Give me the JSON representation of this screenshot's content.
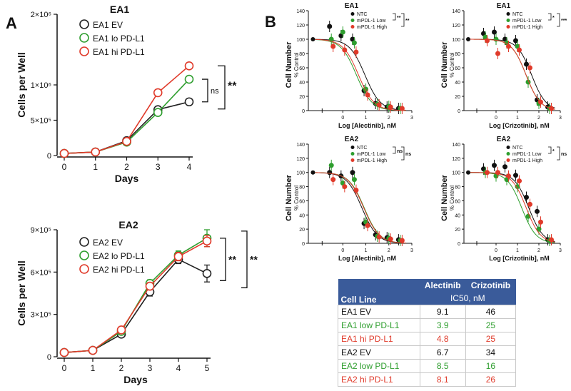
{
  "panel_labels": {
    "a": "A",
    "b": "B"
  },
  "colors": {
    "ev": "#222222",
    "lo": "#2e9e2e",
    "hi": "#e03a2a",
    "ntc": "#111111",
    "mlow": "#2e9e2e",
    "mhigh": "#e03a2a",
    "table_header": "#3a5b9a"
  },
  "chart_data": [
    {
      "type": "line",
      "title": "EA1",
      "xlabel": "Days",
      "ylabel": "Cells per Well",
      "x": [
        0,
        1,
        2,
        3,
        4
      ],
      "xlim": [
        0,
        4
      ],
      "ylim": [
        0,
        2000000
      ],
      "yticks": [
        "0",
        "5×10⁵",
        "1×10⁶",
        "2×10⁶"
      ],
      "xticks": [
        "0",
        "1",
        "2",
        "3",
        "4"
      ],
      "series": [
        {
          "name": "EA1 EV",
          "values": [
            30000,
            50000,
            210000,
            650000,
            760000
          ]
        },
        {
          "name": "EA1 lo PD-L1",
          "values": [
            30000,
            50000,
            190000,
            610000,
            1080000
          ]
        },
        {
          "name": "EA1 hi PD-L1",
          "values": [
            30000,
            50000,
            200000,
            890000,
            1270000
          ]
        }
      ],
      "annotations": [
        "ns",
        "**"
      ],
      "legend": "top-left"
    },
    {
      "type": "line",
      "title": "EA2",
      "xlabel": "Days",
      "ylabel": "Cells per Well",
      "x": [
        0,
        1,
        2,
        3,
        4,
        5
      ],
      "xlim": [
        0,
        5
      ],
      "ylim": [
        0,
        900000
      ],
      "yticks": [
        "0",
        "3×10⁵",
        "6×10⁵",
        "9×10⁵"
      ],
      "xticks": [
        "0",
        "1",
        "2",
        "3",
        "4",
        "5"
      ],
      "series": [
        {
          "name": "EA2 EV",
          "values": [
            30000,
            45000,
            160000,
            460000,
            690000,
            590000
          ],
          "err": [
            0,
            0,
            10000,
            30000,
            30000,
            60000
          ]
        },
        {
          "name": "EA2 lo PD-L1",
          "values": [
            30000,
            45000,
            180000,
            520000,
            720000,
            840000
          ],
          "err": [
            0,
            0,
            10000,
            25000,
            30000,
            60000
          ]
        },
        {
          "name": "EA2 hi PD-L1",
          "values": [
            30000,
            45000,
            190000,
            500000,
            710000,
            820000
          ],
          "err": [
            0,
            0,
            10000,
            25000,
            30000,
            40000
          ]
        }
      ],
      "annotations": [
        "**",
        "**"
      ],
      "legend": "top-left"
    },
    {
      "type": "scatter",
      "title": "EA1",
      "xlabel": "Log [Alectinib], nM",
      "ylabel": "Cell Number",
      "ysublabel": "% Control",
      "xlim": [
        -1.5,
        3
      ],
      "ylim": [
        0,
        140
      ],
      "xticks": [
        "0",
        "1",
        "2",
        "3"
      ],
      "yticks": [
        "0",
        "20",
        "40",
        "60",
        "80",
        "100",
        "120",
        "140"
      ],
      "x": [
        -0.5,
        0,
        0.5,
        1,
        1.5,
        2,
        2.5
      ],
      "series": [
        {
          "name": "NTC",
          "values": [
            118,
            105,
            100,
            28,
            10,
            5,
            3
          ],
          "ic50_log": 0.96
        },
        {
          "name": "mPDL-1 Low",
          "values": [
            100,
            110,
            95,
            30,
            9,
            6,
            3
          ],
          "ic50_log": 0.59
        },
        {
          "name": "mPDL-1 High",
          "values": [
            90,
            85,
            82,
            22,
            8,
            5,
            3
          ],
          "ic50_log": 0.68
        }
      ],
      "annotations": [
        "**",
        "**"
      ]
    },
    {
      "type": "scatter",
      "title": "EA1",
      "xlabel": "Log [Crizotinib], nM",
      "ylabel": "Cell Number",
      "ysublabel": "% Control",
      "xlim": [
        -1.5,
        3
      ],
      "ylim": [
        0,
        140
      ],
      "xticks": [
        "0",
        "1",
        "2",
        "3"
      ],
      "yticks": [
        "0",
        "20",
        "40",
        "60",
        "80",
        "100",
        "120",
        "140"
      ],
      "x": [
        -0.5,
        0,
        0.5,
        1,
        1.5,
        2,
        2.5
      ],
      "series": [
        {
          "name": "NTC",
          "values": [
            108,
            110,
            100,
            98,
            65,
            15,
            5
          ],
          "ic50_log": 1.66
        },
        {
          "name": "mPDL-1 Low",
          "values": [
            103,
            100,
            95,
            90,
            40,
            10,
            3
          ],
          "ic50_log": 1.4
        },
        {
          "name": "mPDL-1 High",
          "values": [
            98,
            80,
            90,
            85,
            60,
            12,
            3
          ],
          "ic50_log": 1.4
        }
      ],
      "annotations": [
        "*",
        "***"
      ]
    },
    {
      "type": "scatter",
      "title": "EA2",
      "xlabel": "Log [Alectinib], nM",
      "ylabel": "Cell Number",
      "ysublabel": "% Control",
      "xlim": [
        -1.5,
        3
      ],
      "ylim": [
        0,
        140
      ],
      "xticks": [
        "0",
        "1",
        "2",
        "3"
      ],
      "yticks": [
        "0",
        "20",
        "40",
        "60",
        "80",
        "100",
        "120",
        "140"
      ],
      "x": [
        -0.5,
        0,
        0.5,
        1,
        1.5,
        2,
        2.5
      ],
      "series": [
        {
          "name": "NTC",
          "values": [
            100,
            95,
            100,
            28,
            12,
            8,
            5
          ],
          "ic50_log": 0.83
        },
        {
          "name": "mPDL-1 Low",
          "values": [
            110,
            85,
            90,
            30,
            10,
            7,
            4
          ],
          "ic50_log": 0.93
        },
        {
          "name": "mPDL-1 High",
          "values": [
            90,
            80,
            75,
            25,
            9,
            6,
            4
          ],
          "ic50_log": 0.91
        }
      ],
      "annotations": [
        "ns",
        "ns"
      ]
    },
    {
      "type": "scatter",
      "title": "EA2",
      "xlabel": "Log [Crizotinib], nM",
      "ylabel": "Cell Number",
      "ysublabel": "% Control",
      "xlim": [
        -1.5,
        3
      ],
      "ylim": [
        0,
        140
      ],
      "xticks": [
        "0",
        "1",
        "2",
        "3"
      ],
      "yticks": [
        "0",
        "20",
        "40",
        "60",
        "80",
        "100",
        "120",
        "140"
      ],
      "x": [
        -0.5,
        0,
        0.5,
        1,
        1.5,
        2,
        2.5
      ],
      "series": [
        {
          "name": "NTC",
          "values": [
            105,
            110,
            108,
            96,
            65,
            45,
            5
          ],
          "ic50_log": 1.53
        },
        {
          "name": "mPDL-1 Low",
          "values": [
            100,
            95,
            90,
            80,
            38,
            20,
            4
          ],
          "ic50_log": 1.2
        },
        {
          "name": "mPDL-1 High",
          "values": [
            100,
            100,
            95,
            88,
            55,
            30,
            5
          ],
          "ic50_log": 1.41
        }
      ],
      "annotations": [
        "*",
        "ns"
      ]
    },
    {
      "type": "table",
      "header": {
        "col0": "Cell Line",
        "col1": "Alectinib",
        "col2": "Crizotinib",
        "sub": "IC50, nM"
      },
      "rows": [
        {
          "name": "EA1 EV",
          "alectinib": "9.1",
          "crizotinib": "46",
          "color": "#111111"
        },
        {
          "name": "EA1 low PD-L1",
          "alectinib": "3.9",
          "crizotinib": "25",
          "color": "#2e9e2e"
        },
        {
          "name": "EA1 hi PD-L1",
          "alectinib": "4.8",
          "crizotinib": "25",
          "color": "#e03a2a"
        },
        {
          "name": "EA2 EV",
          "alectinib": "6.7",
          "crizotinib": "34",
          "color": "#111111"
        },
        {
          "name": "EA2 low PD-L1",
          "alectinib": "8.5",
          "crizotinib": "16",
          "color": "#2e9e2e"
        },
        {
          "name": "EA2 hi PD-L1",
          "alectinib": "8.1",
          "crizotinib": "26",
          "color": "#e03a2a"
        }
      ]
    }
  ]
}
